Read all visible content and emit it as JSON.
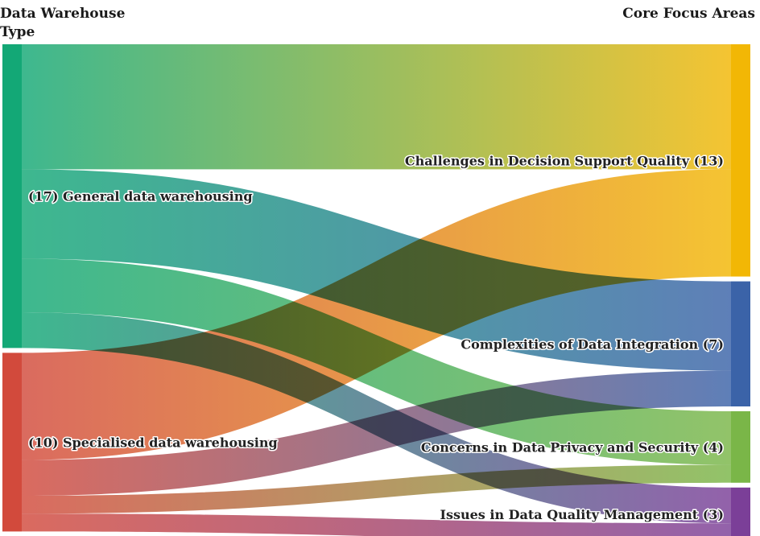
{
  "headers": {
    "left": [
      "Data Warehouse",
      "Type"
    ],
    "right": "Core Focus Areas"
  },
  "chart_data": {
    "type": "sankey",
    "sources": [
      {
        "id": "general",
        "label": "(17) General data warehousing",
        "value": 17,
        "color": "#13a876"
      },
      {
        "id": "specialised",
        "label": "(10) Specialised data warehousing",
        "value": 10,
        "color": "#d24a3c"
      }
    ],
    "targets": [
      {
        "id": "decision",
        "label": "Challenges in Decision Support Quality (13)",
        "value": 13,
        "color": "#f2b705"
      },
      {
        "id": "integration",
        "label": "Complexities of Data Integration (7)",
        "value": 7,
        "color": "#3b63a8"
      },
      {
        "id": "privacy",
        "label": "Concerns in Data Privacy and Security (4)",
        "value": 4,
        "color": "#7ab648"
      },
      {
        "id": "quality",
        "label": "Issues in Data Quality Management (3)",
        "value": 3,
        "color": "#7b3f98"
      }
    ],
    "links": [
      {
        "source": "general",
        "target": "decision",
        "value": 7
      },
      {
        "source": "general",
        "target": "integration",
        "value": 5
      },
      {
        "source": "general",
        "target": "privacy",
        "value": 3
      },
      {
        "source": "general",
        "target": "quality",
        "value": 2
      },
      {
        "source": "specialised",
        "target": "decision",
        "value": 6
      },
      {
        "source": "specialised",
        "target": "integration",
        "value": 2
      },
      {
        "source": "specialised",
        "target": "privacy",
        "value": 1
      },
      {
        "source": "specialised",
        "target": "quality",
        "value": 1
      }
    ]
  }
}
